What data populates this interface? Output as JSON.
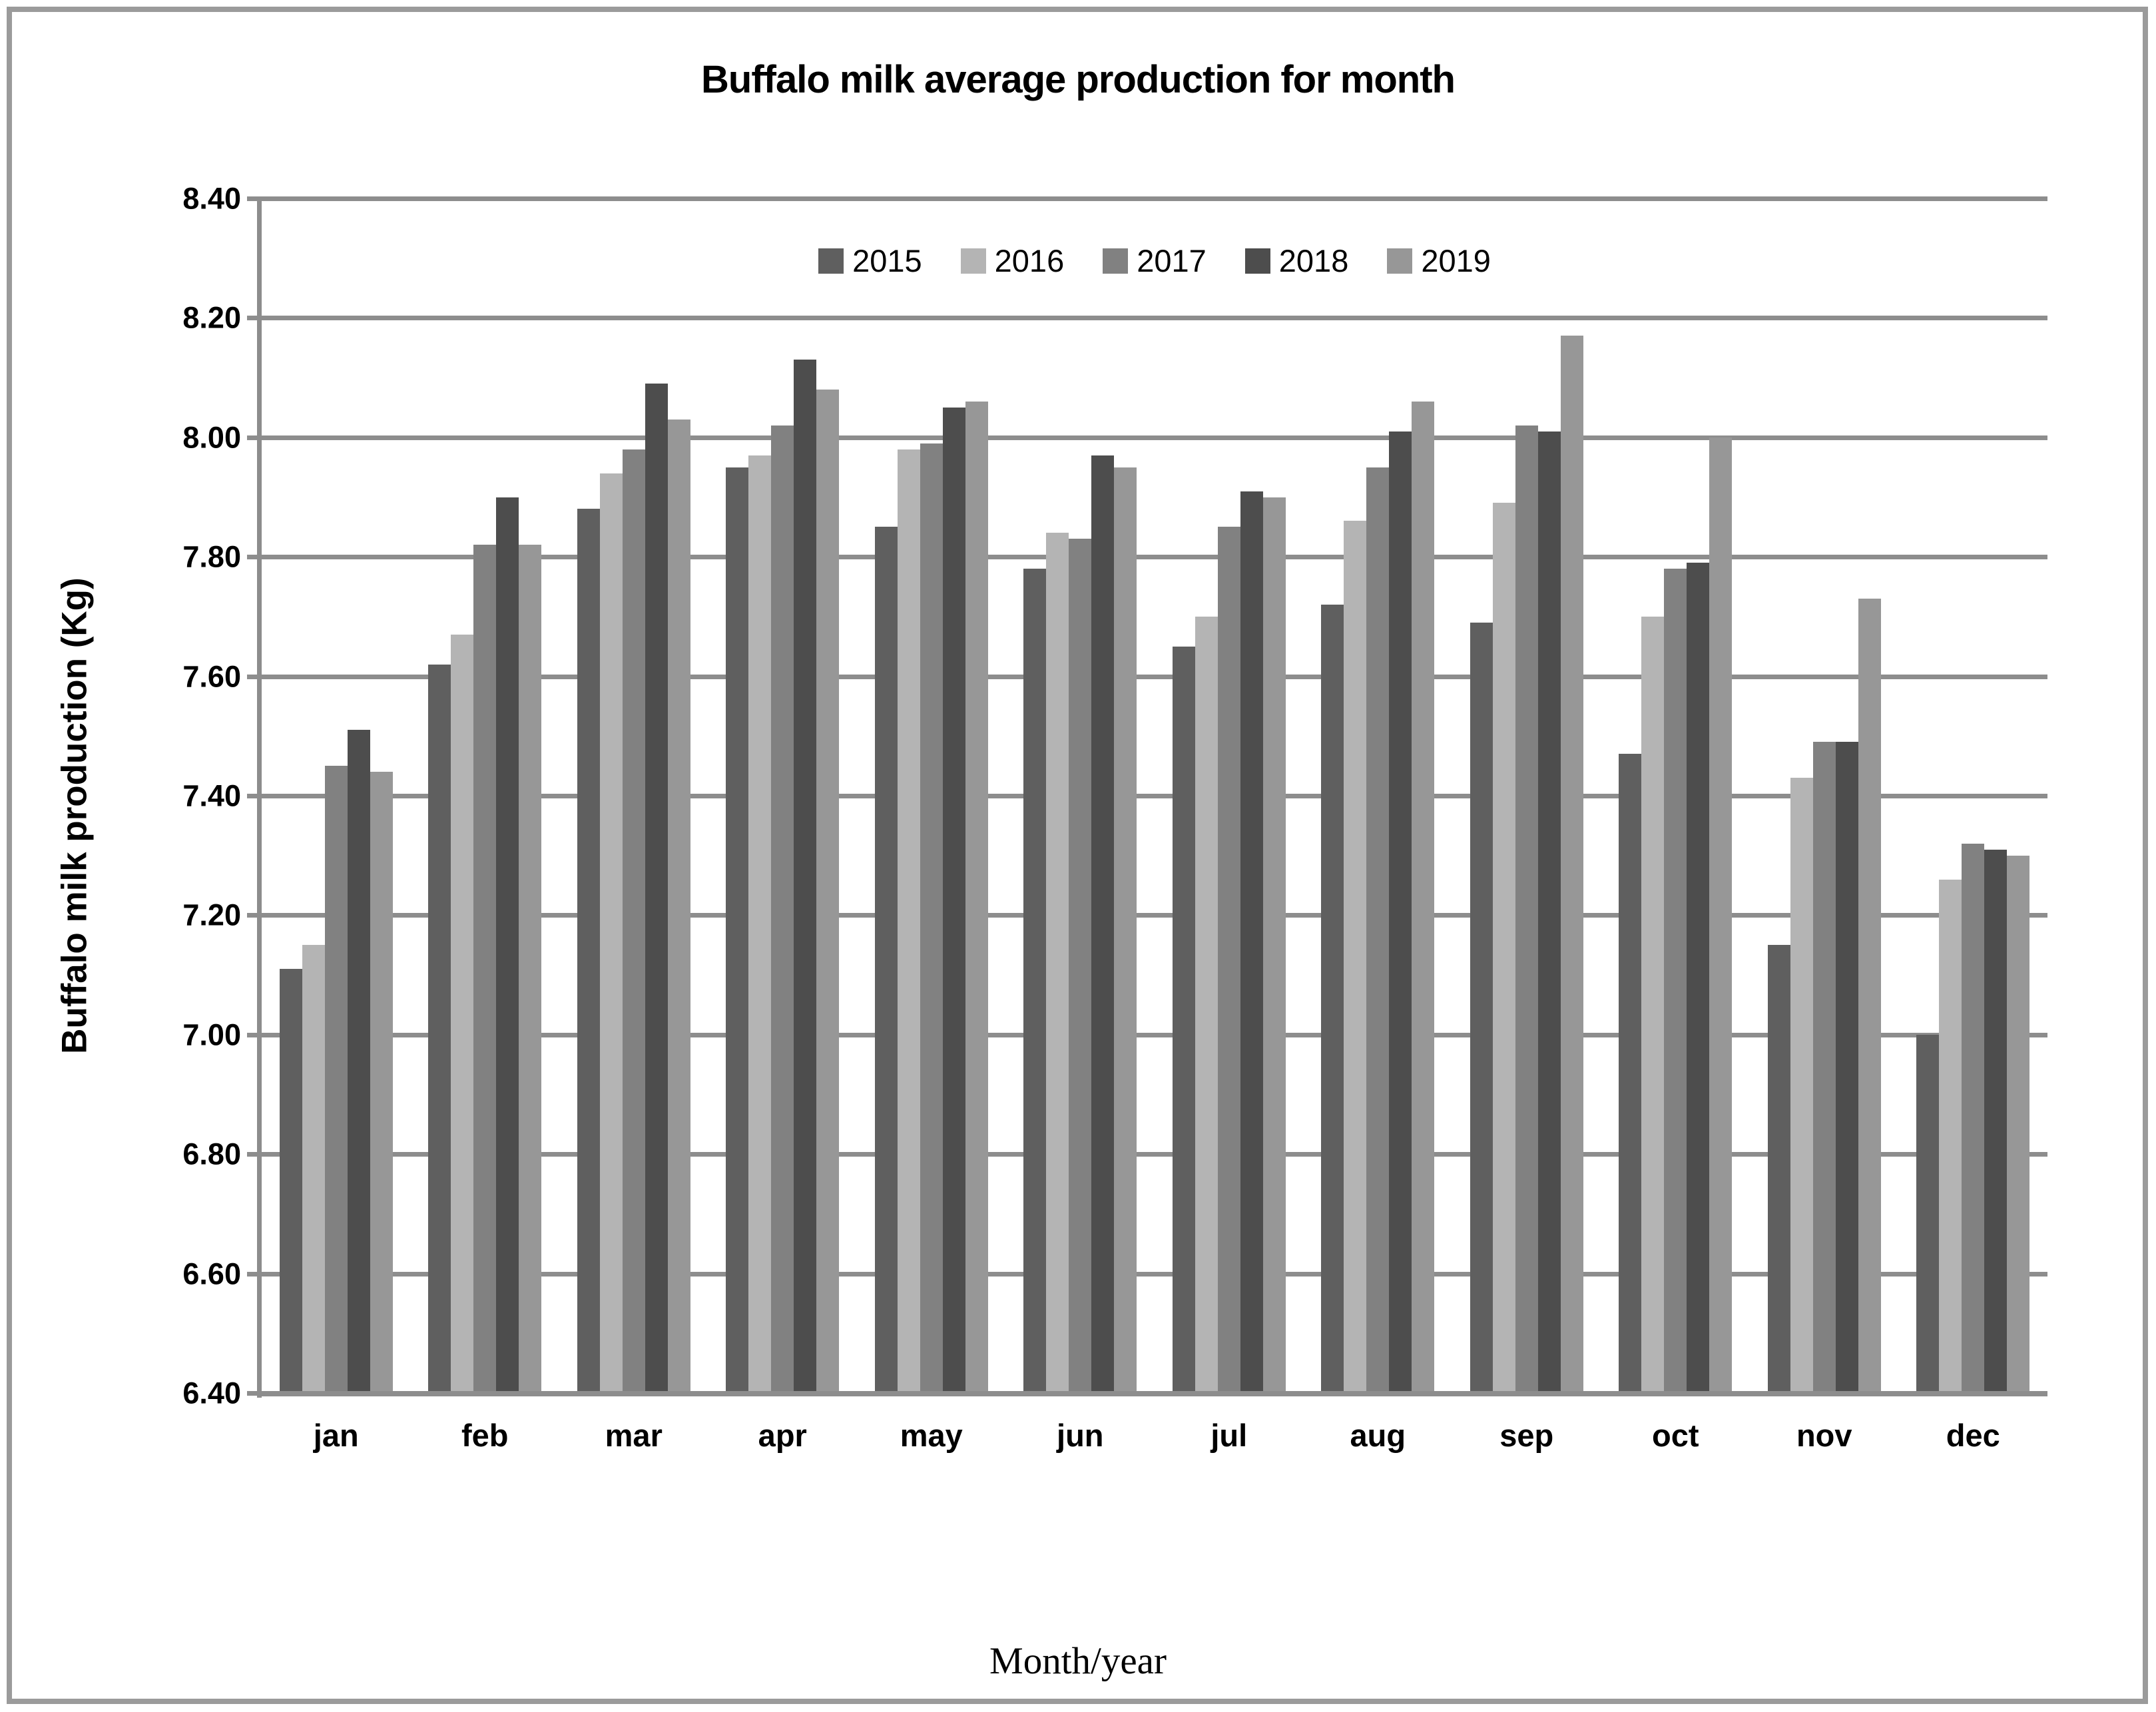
{
  "figure": {
    "border_color": "#9b9b9b",
    "background": "#ffffff"
  },
  "chart_data": {
    "type": "bar",
    "title": "Buffalo milk average production for month",
    "xlabel": "Month/year",
    "ylabel": "Buffalo milk production (Kg)",
    "categories": [
      "jan",
      "feb",
      "mar",
      "apr",
      "may",
      "jun",
      "jul",
      "aug",
      "sep",
      "oct",
      "nov",
      "dec"
    ],
    "series": [
      {
        "name": "2015",
        "color": "#5f5f5f",
        "values": [
          7.11,
          7.62,
          7.88,
          7.95,
          7.85,
          7.78,
          7.65,
          7.72,
          7.69,
          7.47,
          7.15,
          7.0
        ]
      },
      {
        "name": "2016",
        "color": "#b4b4b4",
        "values": [
          7.15,
          7.67,
          7.94,
          7.97,
          7.98,
          7.84,
          7.7,
          7.86,
          7.89,
          7.7,
          7.43,
          7.26
        ]
      },
      {
        "name": "2017",
        "color": "#818181",
        "values": [
          7.45,
          7.82,
          7.98,
          8.02,
          7.99,
          7.83,
          7.85,
          7.95,
          8.02,
          7.78,
          7.49,
          7.32
        ]
      },
      {
        "name": "2018",
        "color": "#4d4d4d",
        "values": [
          7.51,
          7.9,
          8.09,
          8.13,
          8.05,
          7.97,
          7.91,
          8.01,
          8.01,
          7.79,
          7.49,
          7.31
        ]
      },
      {
        "name": "2019",
        "color": "#979797",
        "values": [
          7.44,
          7.82,
          8.03,
          8.08,
          8.06,
          7.95,
          7.9,
          8.06,
          8.17,
          8.0,
          7.73,
          7.3
        ]
      }
    ],
    "ylim": [
      6.4,
      8.4
    ],
    "ytick_step": 0.2,
    "ytick_labels": [
      "6.40",
      "6.60",
      "6.80",
      "7.00",
      "7.20",
      "7.40",
      "7.60",
      "7.80",
      "8.00",
      "8.20",
      "8.40"
    ],
    "grid": true,
    "gridline_color": "#8d8d8d",
    "axis_color": "#8d8d8d",
    "legend_position": "top-center-inside",
    "legend_entries": [
      "2015",
      "2016",
      "2017",
      "2018",
      "2019"
    ]
  }
}
